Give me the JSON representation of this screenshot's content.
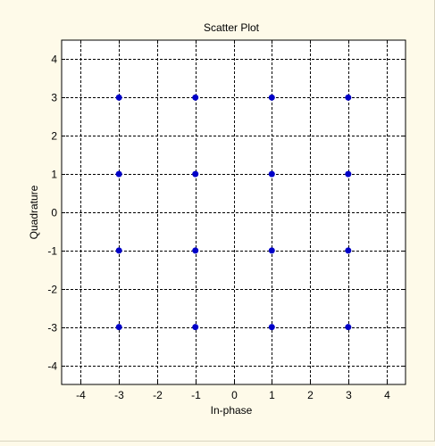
{
  "chart_data": {
    "type": "scatter",
    "title": "Scatter Plot",
    "xlabel": "In-phase",
    "ylabel": "Quadrature",
    "xlim": [
      -4.5,
      4.5
    ],
    "ylim": [
      -4.5,
      4.5
    ],
    "xticks": [
      "-4",
      "-3",
      "-2",
      "-1",
      "0",
      "1",
      "2",
      "3",
      "4"
    ],
    "yticks": [
      "4",
      "3",
      "2",
      "1",
      "0",
      "-1",
      "-2",
      "-3",
      "-4"
    ],
    "grid": true,
    "grid_style": "dashed",
    "legend": "none",
    "series": [
      {
        "color": "#0000c8",
        "points": [
          [
            -3,
            3
          ],
          [
            -1,
            3
          ],
          [
            1,
            3
          ],
          [
            3,
            3
          ],
          [
            -3,
            1
          ],
          [
            -1,
            1
          ],
          [
            1,
            1
          ],
          [
            3,
            1
          ],
          [
            -3,
            -1
          ],
          [
            -1,
            -1
          ],
          [
            1,
            -1
          ],
          [
            3,
            -1
          ],
          [
            -3,
            -3
          ],
          [
            -1,
            -3
          ],
          [
            1,
            -3
          ],
          [
            3,
            -3
          ]
        ]
      }
    ]
  },
  "colors": {
    "background": "#fefae9",
    "plot_area": "#ffffff",
    "axis": "#000000",
    "grid": "#000000",
    "marker": "#0000c8"
  }
}
